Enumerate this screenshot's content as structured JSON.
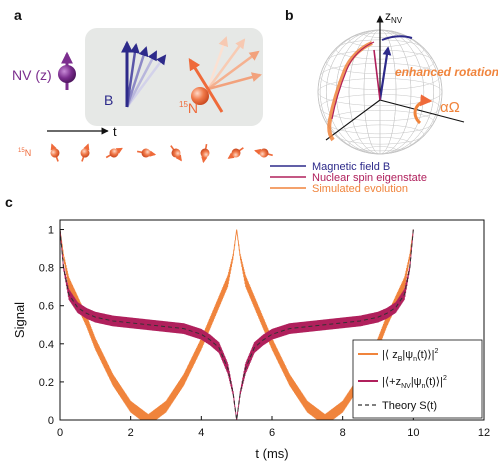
{
  "panel_a": {
    "label": "a",
    "nv_label": "NV (z)",
    "b_label": "B",
    "n15_sup": "15",
    "n15_label": "N",
    "t_label": "t",
    "row_sup": "15",
    "row_label": "N",
    "colors": {
      "nv": "#7b2d8e",
      "b": "#2d2a8a",
      "nuclear": "#ef6a3a",
      "box": "#e6e8e6"
    }
  },
  "panel_b": {
    "label": "b",
    "z_axis": "z",
    "z_sub": "NV",
    "annotation": "enhanced rotation",
    "rate_label": "αΩ",
    "legend": [
      {
        "label": "Magnetic field B",
        "color": "#2d2a8a"
      },
      {
        "label": "Nuclear spin eigenstate",
        "color": "#b0205c"
      },
      {
        "label": "Simulated evolution",
        "color": "#f0843c"
      }
    ]
  },
  "chart_data": {
    "label": "c",
    "type": "line",
    "xlabel": "t (ms)",
    "ylabel": "Signal",
    "xlim": [
      0,
      12
    ],
    "ylim": [
      0,
      1.05
    ],
    "xticks": [
      "0",
      "2",
      "4",
      "6",
      "8",
      "10",
      "12"
    ],
    "yticks": [
      "0",
      "0.2",
      "0.4",
      "0.6",
      "0.8",
      "1"
    ],
    "series": [
      {
        "name_parts": [
          "|⟨ z",
          "B",
          "|ψ",
          "n",
          "(t)⟩|",
          "2"
        ],
        "color": "#f0843c",
        "band": "wide",
        "x": [
          0,
          0.1,
          0.25,
          0.5,
          0.75,
          1.0,
          1.5,
          2.0,
          2.5,
          3.0,
          3.5,
          4.0,
          4.5,
          4.75,
          4.9,
          5.0,
          5.1,
          5.25,
          5.5,
          6.0,
          6.5,
          7.0,
          7.5,
          8.0,
          8.5,
          9.0,
          9.25,
          9.5,
          9.75,
          9.9,
          10.0
        ],
        "y": [
          1.0,
          0.86,
          0.72,
          0.62,
          0.52,
          0.4,
          0.21,
          0.07,
          0.0,
          0.07,
          0.21,
          0.4,
          0.62,
          0.73,
          0.86,
          1.0,
          0.86,
          0.73,
          0.62,
          0.4,
          0.21,
          0.07,
          0.0,
          0.07,
          0.21,
          0.4,
          0.52,
          0.62,
          0.72,
          0.86,
          1.0
        ]
      },
      {
        "name_parts": [
          "|⟨+z",
          "NV",
          "|ψ",
          "n",
          "(t)⟩|",
          "2"
        ],
        "color": "#b0205c",
        "band": "narrow",
        "x": [
          0,
          0.1,
          0.25,
          0.5,
          0.75,
          1.0,
          1.5,
          2.0,
          2.5,
          3.0,
          3.5,
          4.0,
          4.25,
          4.5,
          4.75,
          4.9,
          5.0,
          5.1,
          5.25,
          5.5,
          5.75,
          6.0,
          6.5,
          7.0,
          7.5,
          8.0,
          8.5,
          9.0,
          9.25,
          9.5,
          9.75,
          9.9,
          10.0
        ],
        "y": [
          1.0,
          0.8,
          0.66,
          0.59,
          0.56,
          0.54,
          0.52,
          0.51,
          0.5,
          0.49,
          0.48,
          0.45,
          0.42,
          0.38,
          0.27,
          0.14,
          0.0,
          0.14,
          0.27,
          0.38,
          0.42,
          0.45,
          0.48,
          0.49,
          0.5,
          0.51,
          0.52,
          0.54,
          0.56,
          0.59,
          0.66,
          0.8,
          1.0
        ]
      },
      {
        "name": "Theory S(t)",
        "color": "#333333",
        "dashed": true,
        "x": [
          0,
          0.1,
          0.25,
          0.5,
          0.75,
          1.0,
          1.5,
          2.0,
          2.5,
          3.0,
          3.5,
          4.0,
          4.25,
          4.5,
          4.75,
          4.9,
          5.0,
          5.1,
          5.25,
          5.5,
          5.75,
          6.0,
          6.5,
          7.0,
          7.5,
          8.0,
          8.5,
          9.0,
          9.25,
          9.5,
          9.75,
          9.9,
          10.0
        ],
        "y": [
          1.0,
          0.8,
          0.66,
          0.59,
          0.56,
          0.54,
          0.52,
          0.51,
          0.5,
          0.49,
          0.48,
          0.45,
          0.42,
          0.38,
          0.27,
          0.14,
          0.0,
          0.14,
          0.27,
          0.38,
          0.42,
          0.45,
          0.48,
          0.49,
          0.5,
          0.51,
          0.52,
          0.54,
          0.56,
          0.59,
          0.66,
          0.8,
          1.0
        ]
      }
    ],
    "legend_position": "bottom-right",
    "grid": false
  }
}
